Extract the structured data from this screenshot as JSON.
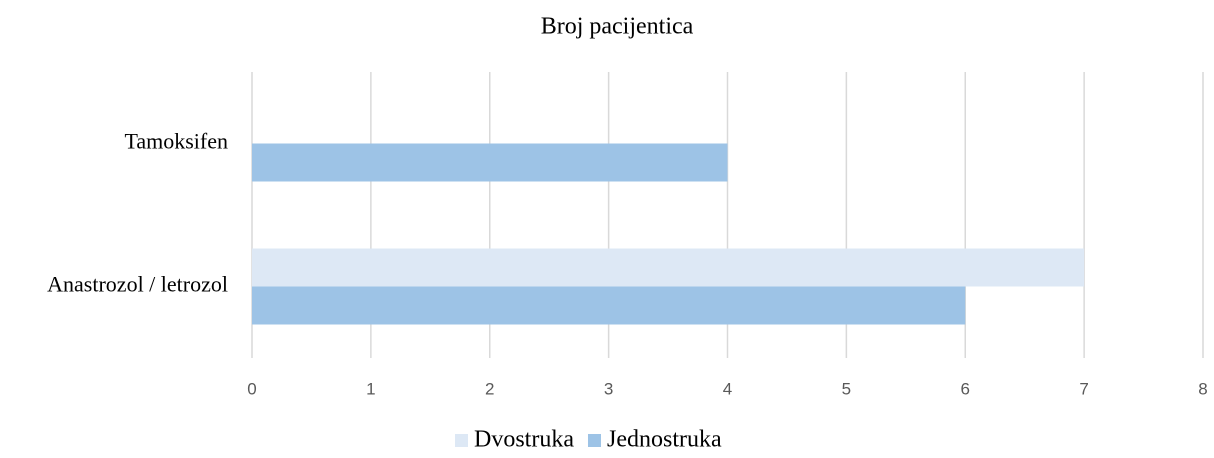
{
  "chart_data": {
    "type": "hbar",
    "title": "Broj pacijentica",
    "categories": [
      "Tamoksifen",
      "Anastrozol / letrozol"
    ],
    "series": [
      {
        "name": "Dvostruka",
        "color": "#dde8f5",
        "values": [
          0,
          7
        ]
      },
      {
        "name": "Jednostruka",
        "color": "#9dc3e6",
        "values": [
          4,
          6
        ]
      }
    ],
    "xlim": [
      0,
      8
    ],
    "xticks": [
      0,
      1,
      2,
      3,
      4,
      5,
      6,
      7,
      8
    ],
    "grid": true,
    "legend": "bottom"
  }
}
